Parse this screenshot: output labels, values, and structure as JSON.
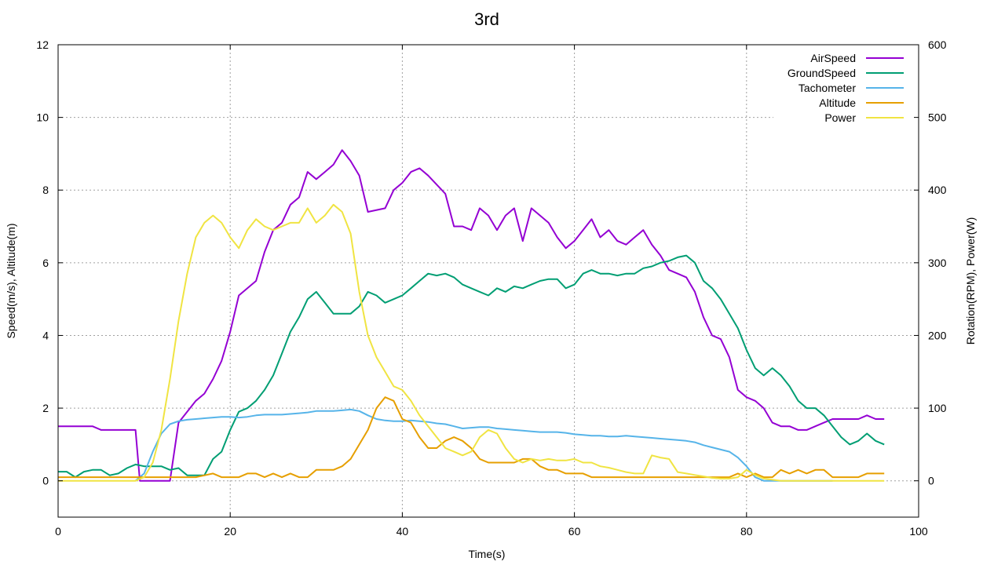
{
  "chart_data": {
    "type": "line",
    "title": "3rd",
    "xlabel": "Time(s)",
    "ylabel": "Speed(m/s), Altitude(m)",
    "y2label": "Rotation(RPM), Power(W)",
    "xlim": [
      0,
      100
    ],
    "ylim": [
      -1,
      12
    ],
    "y2lim": [
      -50,
      600
    ],
    "xticks": [
      0,
      20,
      40,
      60,
      80,
      100
    ],
    "yticks": [
      0,
      2,
      4,
      6,
      8,
      10,
      12
    ],
    "y2ticks": [
      0,
      100,
      200,
      300,
      400,
      500,
      600
    ],
    "grid": true,
    "legend_position": "top-right",
    "series": [
      {
        "name": "AirSpeed",
        "axis": "left",
        "color": "#9400d3",
        "x": [
          0,
          4,
          5,
          9,
          9.5,
          13,
          14,
          16,
          17,
          18,
          19,
          20,
          21,
          23,
          24,
          25,
          26,
          27,
          28,
          29,
          30,
          31,
          32,
          33,
          34,
          35,
          36,
          38,
          39,
          40,
          41,
          42,
          43,
          45,
          46,
          47,
          48,
          49,
          50,
          51,
          52,
          53,
          54,
          55,
          56,
          57,
          58,
          59,
          60,
          61,
          62,
          63,
          64,
          65,
          66,
          67,
          68,
          69,
          70,
          71,
          72,
          73,
          74,
          75,
          76,
          77,
          78,
          79,
          80,
          81,
          82,
          83,
          84,
          85,
          86,
          87,
          88,
          89,
          90,
          91,
          92,
          93,
          94,
          95,
          96
        ],
        "y": [
          1.5,
          1.5,
          1.4,
          1.4,
          0.0,
          0.0,
          1.6,
          2.2,
          2.4,
          2.8,
          3.3,
          4.1,
          5.1,
          5.5,
          6.3,
          6.9,
          7.1,
          7.6,
          7.8,
          8.5,
          8.3,
          8.5,
          8.7,
          9.1,
          8.8,
          8.4,
          7.4,
          7.5,
          8.0,
          8.2,
          8.5,
          8.6,
          8.4,
          7.9,
          7.0,
          7.0,
          6.9,
          7.5,
          7.3,
          6.9,
          7.3,
          7.5,
          6.6,
          7.5,
          7.3,
          7.1,
          6.7,
          6.4,
          6.6,
          6.9,
          7.2,
          6.7,
          6.9,
          6.6,
          6.5,
          6.7,
          6.9,
          6.5,
          6.2,
          5.8,
          5.7,
          5.6,
          5.2,
          4.5,
          4.0,
          3.9,
          3.4,
          2.5,
          2.3,
          2.2,
          2.0,
          1.6,
          1.5,
          1.5,
          1.4,
          1.4,
          1.5,
          1.6,
          1.7,
          1.7,
          1.7,
          1.7,
          1.8,
          1.7,
          1.7
        ]
      },
      {
        "name": "GroundSpeed",
        "axis": "left",
        "color": "#009e73",
        "x": [
          0,
          1,
          2,
          3,
          4,
          5,
          6,
          7,
          8,
          9,
          10,
          11,
          12,
          13,
          14,
          15,
          16,
          17,
          18,
          19,
          20,
          21,
          22,
          23,
          24,
          25,
          26,
          27,
          28,
          29,
          30,
          31,
          32,
          33,
          34,
          35,
          36,
          37,
          38,
          39,
          40,
          41,
          42,
          43,
          44,
          45,
          46,
          47,
          48,
          49,
          50,
          51,
          52,
          53,
          54,
          55,
          56,
          57,
          58,
          59,
          60,
          61,
          62,
          63,
          64,
          65,
          66,
          67,
          68,
          69,
          70,
          71,
          72,
          73,
          74,
          75,
          76,
          77,
          78,
          79,
          80,
          81,
          82,
          83,
          84,
          85,
          86,
          87,
          88,
          89,
          90,
          91,
          92,
          93,
          94,
          95,
          96
        ],
        "y": [
          0.25,
          0.25,
          0.1,
          0.25,
          0.3,
          0.3,
          0.15,
          0.2,
          0.35,
          0.45,
          0.4,
          0.4,
          0.4,
          0.3,
          0.35,
          0.15,
          0.15,
          0.15,
          0.6,
          0.8,
          1.4,
          1.9,
          2.0,
          2.2,
          2.5,
          2.9,
          3.5,
          4.1,
          4.5,
          5.0,
          5.2,
          4.9,
          4.6,
          4.6,
          4.6,
          4.8,
          5.2,
          5.1,
          4.9,
          5.0,
          5.1,
          5.3,
          5.5,
          5.7,
          5.65,
          5.7,
          5.6,
          5.4,
          5.3,
          5.2,
          5.1,
          5.3,
          5.2,
          5.35,
          5.3,
          5.4,
          5.5,
          5.55,
          5.55,
          5.3,
          5.4,
          5.7,
          5.8,
          5.7,
          5.7,
          5.65,
          5.7,
          5.7,
          5.85,
          5.9,
          6.0,
          6.05,
          6.15,
          6.2,
          6.0,
          5.5,
          5.3,
          5.0,
          4.6,
          4.2,
          3.6,
          3.1,
          2.9,
          3.1,
          2.9,
          2.6,
          2.2,
          2.0,
          2.0,
          1.8,
          1.5,
          1.2,
          1.0,
          1.1,
          1.3,
          1.1,
          1.0
        ]
      },
      {
        "name": "Tachometer",
        "axis": "right",
        "color": "#56b4e9",
        "x": [
          9,
          10,
          11,
          12,
          13,
          14,
          15,
          16,
          17,
          18,
          19,
          20,
          21,
          22,
          23,
          24,
          25,
          26,
          27,
          28,
          29,
          30,
          31,
          32,
          33,
          34,
          35,
          36,
          37,
          38,
          39,
          40,
          41,
          42,
          43,
          44,
          45,
          46,
          47,
          48,
          49,
          50,
          51,
          52,
          53,
          54,
          55,
          56,
          57,
          58,
          59,
          60,
          61,
          62,
          63,
          64,
          65,
          66,
          67,
          68,
          69,
          70,
          71,
          72,
          73,
          74,
          75,
          76,
          77,
          78,
          79,
          80,
          81,
          82,
          83,
          84,
          85,
          86,
          87,
          88,
          89,
          90
        ],
        "y": [
          0,
          10,
          40,
          65,
          78,
          82,
          84,
          85,
          86,
          87,
          88,
          88,
          87,
          88,
          90,
          91,
          91,
          91,
          92,
          93,
          94,
          96,
          96,
          96,
          97,
          98,
          96,
          90,
          85,
          83,
          82,
          82,
          83,
          82,
          81,
          79,
          78,
          75,
          72,
          73,
          74,
          74,
          72,
          71,
          70,
          69,
          68,
          67,
          67,
          67,
          66,
          64,
          63,
          62,
          62,
          61,
          61,
          62,
          61,
          60,
          59,
          58,
          57,
          56,
          55,
          53,
          49,
          46,
          43,
          40,
          32,
          20,
          5,
          0,
          0,
          0,
          0,
          0,
          0,
          0,
          0,
          0
        ]
      },
      {
        "name": "Altitude",
        "axis": "left",
        "color": "#e69f00",
        "x": [
          0,
          4,
          8,
          12,
          16,
          18,
          19,
          20,
          21,
          22,
          23,
          24,
          25,
          26,
          27,
          28,
          29,
          30,
          31,
          32,
          33,
          34,
          35,
          36,
          37,
          38,
          39,
          40,
          41,
          42,
          43,
          44,
          45,
          46,
          47,
          48,
          49,
          50,
          51,
          52,
          53,
          54,
          55,
          56,
          57,
          58,
          59,
          60,
          61,
          62,
          63,
          64,
          65,
          66,
          67,
          68,
          69,
          70,
          71,
          72,
          73,
          74,
          75,
          76,
          77,
          78,
          79,
          80,
          81,
          82,
          83,
          84,
          85,
          86,
          87,
          88,
          89,
          90,
          91,
          92,
          93,
          94,
          95,
          96
        ],
        "y": [
          0.1,
          0.1,
          0.1,
          0.1,
          0.1,
          0.2,
          0.1,
          0.1,
          0.1,
          0.2,
          0.2,
          0.1,
          0.2,
          0.1,
          0.2,
          0.1,
          0.1,
          0.3,
          0.3,
          0.3,
          0.4,
          0.6,
          1.0,
          1.4,
          2.0,
          2.3,
          2.2,
          1.7,
          1.6,
          1.2,
          0.9,
          0.9,
          1.1,
          1.2,
          1.1,
          0.9,
          0.6,
          0.5,
          0.5,
          0.5,
          0.5,
          0.6,
          0.6,
          0.4,
          0.3,
          0.3,
          0.2,
          0.2,
          0.2,
          0.1,
          0.1,
          0.1,
          0.1,
          0.1,
          0.1,
          0.1,
          0.1,
          0.1,
          0.1,
          0.1,
          0.1,
          0.1,
          0.1,
          0.1,
          0.1,
          0.1,
          0.2,
          0.1,
          0.2,
          0.1,
          0.1,
          0.3,
          0.2,
          0.3,
          0.2,
          0.3,
          0.3,
          0.1,
          0.1,
          0.1,
          0.1,
          0.2,
          0.2,
          0.2
        ]
      },
      {
        "name": "Power",
        "axis": "right",
        "color": "#f0e442",
        "x": [
          0,
          8,
          9,
          10,
          11,
          12,
          13,
          14,
          15,
          16,
          17,
          18,
          19,
          20,
          21,
          22,
          23,
          24,
          25,
          26,
          27,
          28,
          29,
          30,
          31,
          32,
          33,
          34,
          35,
          36,
          37,
          38,
          39,
          40,
          41,
          42,
          43,
          44,
          45,
          46,
          47,
          48,
          49,
          50,
          51,
          52,
          53,
          54,
          55,
          56,
          57,
          58,
          59,
          60,
          61,
          62,
          63,
          64,
          65,
          66,
          67,
          68,
          69,
          70,
          71,
          72,
          73,
          74,
          75,
          76,
          77,
          78,
          79,
          80,
          81,
          82,
          84,
          86,
          88,
          90,
          92,
          94,
          96
        ],
        "y": [
          0,
          0,
          0,
          5,
          25,
          70,
          140,
          220,
          285,
          335,
          355,
          365,
          355,
          335,
          320,
          345,
          360,
          350,
          345,
          350,
          355,
          355,
          375,
          355,
          365,
          380,
          370,
          340,
          260,
          200,
          170,
          150,
          130,
          125,
          110,
          90,
          75,
          60,
          45,
          40,
          35,
          40,
          60,
          70,
          65,
          45,
          30,
          25,
          30,
          28,
          30,
          28,
          28,
          30,
          25,
          25,
          20,
          18,
          15,
          12,
          10,
          10,
          35,
          32,
          30,
          12,
          10,
          8,
          6,
          4,
          3,
          3,
          5,
          15,
          8,
          3,
          0,
          0,
          0,
          0,
          0,
          0,
          0
        ]
      }
    ]
  }
}
